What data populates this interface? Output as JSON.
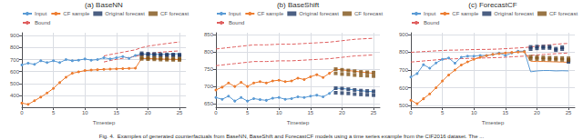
{
  "caption": "Fig. 4.  Examples of generated counterfactuals from BaseNN, BaseShift and ForecastCF models using a time series example from the CIF2016 dataset. The ...",
  "chart_data": [
    {
      "type": "line",
      "title": "(a) BaseNN",
      "x_label": "Timestep",
      "xlim": [
        0,
        26
      ],
      "xticks": [
        0,
        5,
        10,
        15,
        20,
        25
      ],
      "ylim": [
        300,
        925
      ],
      "yticks": [
        400,
        500,
        600,
        700,
        800,
        900
      ],
      "grid": true,
      "legend": "upper left",
      "series": [
        {
          "name": "Input",
          "type": "line",
          "color": "#5b9bd5",
          "marker": "o",
          "line_style": "solid",
          "x": [
            0,
            1,
            2,
            3,
            4,
            5,
            6,
            7,
            8,
            9,
            10,
            11,
            12,
            13,
            14,
            15,
            16,
            17,
            18
          ],
          "values": [
            655,
            670,
            660,
            690,
            675,
            690,
            675,
            700,
            690,
            695,
            705,
            695,
            700,
            715,
            705,
            715,
            725,
            710,
            735
          ]
        },
        {
          "name": "CF sample",
          "type": "line",
          "color": "#ed7d31",
          "marker": "o",
          "line_style": "solid",
          "x": [
            0,
            1,
            2,
            3,
            4,
            5,
            6,
            7,
            8,
            9,
            10,
            11,
            12,
            13,
            14,
            15,
            16,
            17,
            18
          ],
          "values": [
            335,
            325,
            355,
            385,
            420,
            458,
            508,
            552,
            585,
            597,
            608,
            612,
            615,
            618,
            620,
            622,
            624,
            626,
            628
          ]
        },
        {
          "name": "Input",
          "type": "line",
          "color": "#5b9bd5",
          "line_style": "solid",
          "x": [
            18,
            19,
            20,
            21,
            22,
            23,
            24,
            25
          ],
          "values": [
            735,
            748,
            744,
            744,
            744,
            744,
            748,
            748
          ]
        },
        {
          "name": "CF sample",
          "type": "line",
          "color": "#ed7d31",
          "line_style": "solid",
          "x": [
            18,
            19,
            20,
            21,
            22,
            23,
            24,
            25
          ],
          "values": [
            628,
            710,
            708,
            706,
            704,
            703,
            702,
            701
          ]
        },
        {
          "name": "Original forecast",
          "type": "scatter",
          "color": "#1f3864",
          "marker": "s",
          "x": [
            19,
            19,
            20,
            20,
            21,
            21,
            22,
            22,
            23,
            23,
            24,
            24,
            25,
            25
          ],
          "values": [
            753,
            742,
            749,
            738,
            747,
            736,
            745,
            734,
            743,
            733,
            742,
            733,
            741,
            732
          ]
        },
        {
          "name": "CF forecast",
          "type": "scatter",
          "color": "#7f5217",
          "marker": "s",
          "x": [
            19,
            19,
            20,
            20,
            21,
            21,
            22,
            22,
            23,
            23,
            24,
            24,
            25,
            25
          ],
          "values": [
            718,
            706,
            715,
            704,
            713,
            702,
            711,
            700,
            709,
            699,
            708,
            698,
            707,
            697
          ]
        },
        {
          "name": "Bound",
          "type": "line",
          "color": "#e06060",
          "line_style": "dashed",
          "x": [
            13,
            14,
            15,
            16,
            17,
            18,
            19,
            20,
            21,
            22,
            23,
            24,
            25
          ],
          "values": [
            730,
            742,
            752,
            762,
            772,
            782,
            800,
            812,
            820,
            828,
            835,
            842,
            848
          ]
        },
        {
          "name": "Bound",
          "type": "line",
          "color": "#e06060",
          "line_style": "dashed",
          "x": [
            13,
            14,
            15,
            16,
            17,
            18,
            19,
            20,
            21,
            22,
            23,
            24,
            25
          ],
          "values": [
            680,
            692,
            702,
            710,
            718,
            726,
            740,
            750,
            756,
            762,
            766,
            770,
            773
          ]
        }
      ]
    },
    {
      "type": "line",
      "title": "(b) BaseShift",
      "x_label": "Timestep",
      "xlim": [
        0,
        26
      ],
      "xticks": [
        0,
        5,
        10,
        15,
        20,
        25
      ],
      "ylim": [
        640,
        855
      ],
      "yticks": [
        650,
        700,
        750,
        800,
        850
      ],
      "grid": true,
      "legend": "upper left",
      "series": [
        {
          "name": "Input",
          "type": "line",
          "color": "#5b9bd5",
          "marker": "o",
          "line_style": "solid",
          "x": [
            0,
            1,
            2,
            3,
            4,
            5,
            6,
            7,
            8,
            9,
            10,
            11,
            12,
            13,
            14,
            15,
            16,
            17,
            18
          ],
          "values": [
            668,
            663,
            672,
            658,
            668,
            658,
            665,
            662,
            660,
            666,
            668,
            663,
            665,
            670,
            668,
            672,
            675,
            670,
            680
          ]
        },
        {
          "name": "CF sample",
          "type": "line",
          "color": "#ed7d31",
          "marker": "o",
          "line_style": "solid",
          "x": [
            0,
            1,
            2,
            3,
            4,
            5,
            6,
            7,
            8,
            9,
            10,
            11,
            12,
            13,
            14,
            15,
            16,
            17,
            18
          ],
          "values": [
            690,
            698,
            710,
            700,
            712,
            700,
            710,
            714,
            710,
            716,
            718,
            714,
            716,
            724,
            720,
            728,
            734,
            726,
            738
          ]
        },
        {
          "name": "Input",
          "type": "line",
          "color": "#5b9bd5",
          "line_style": "solid",
          "x": [
            18,
            19,
            20,
            21,
            22,
            23,
            24,
            25
          ],
          "values": [
            680,
            695,
            694,
            692,
            690,
            688,
            686,
            685
          ]
        },
        {
          "name": "CF sample",
          "type": "line",
          "color": "#ed7d31",
          "line_style": "solid",
          "x": [
            18,
            19,
            20,
            21,
            22,
            23,
            24,
            25
          ],
          "values": [
            738,
            750,
            748,
            746,
            744,
            742,
            740,
            738
          ]
        },
        {
          "name": "Original forecast",
          "type": "scatter",
          "color": "#1f3864",
          "marker": "s",
          "x": [
            19,
            19,
            20,
            20,
            21,
            21,
            22,
            22,
            23,
            23,
            24,
            24,
            25,
            25
          ],
          "values": [
            695,
            682,
            694,
            681,
            692,
            680,
            690,
            678,
            688,
            677,
            687,
            676,
            686,
            675
          ]
        },
        {
          "name": "CF forecast",
          "type": "scatter",
          "color": "#7f5217",
          "marker": "s",
          "x": [
            19,
            19,
            20,
            20,
            21,
            21,
            22,
            22,
            23,
            23,
            24,
            24,
            25,
            25
          ],
          "values": [
            750,
            738,
            748,
            736,
            746,
            735,
            744,
            733,
            742,
            732,
            741,
            731,
            740,
            730
          ]
        },
        {
          "name": "Bound",
          "type": "line",
          "color": "#e06060",
          "line_style": "dashed",
          "x": [
            0,
            1,
            2,
            3,
            4,
            5,
            6,
            7,
            8,
            9,
            10,
            11,
            12,
            13,
            14,
            15,
            16,
            17,
            18,
            19,
            20,
            21,
            22,
            23,
            24,
            25
          ],
          "values": [
            808,
            810,
            812,
            814,
            816,
            818,
            820,
            820,
            820,
            821,
            822,
            822,
            822,
            823,
            824,
            825,
            826,
            827,
            828,
            830,
            832,
            834,
            836,
            837,
            838,
            839
          ]
        },
        {
          "name": "Bound",
          "type": "line",
          "color": "#e06060",
          "line_style": "dashed",
          "x": [
            0,
            1,
            2,
            3,
            4,
            5,
            6,
            7,
            8,
            9,
            10,
            11,
            12,
            13,
            14,
            15,
            16,
            17,
            18,
            19,
            20,
            21,
            22,
            23,
            24,
            25
          ],
          "values": [
            760,
            762,
            764,
            766,
            768,
            770,
            772,
            772,
            772,
            773,
            774,
            774,
            774,
            775,
            776,
            777,
            778,
            779,
            780,
            782,
            784,
            786,
            788,
            789,
            790,
            791
          ]
        }
      ]
    },
    {
      "type": "line",
      "title": "(c) ForecastCF",
      "x_label": "Timestep",
      "xlim": [
        0,
        26
      ],
      "xticks": [
        0,
        5,
        10,
        15,
        20,
        25
      ],
      "ylim": [
        490,
        910
      ],
      "yticks": [
        500,
        600,
        700,
        800,
        900
      ],
      "grid": true,
      "legend": "upper left",
      "series": [
        {
          "name": "Input",
          "type": "line",
          "color": "#5b9bd5",
          "marker": "o",
          "line_style": "solid",
          "x": [
            0,
            1,
            2,
            3,
            4,
            5,
            6,
            7,
            8,
            9,
            10,
            11,
            12,
            13,
            14,
            15,
            16,
            17,
            18
          ],
          "values": [
            660,
            680,
            730,
            710,
            740,
            760,
            768,
            738,
            772,
            778,
            778,
            782,
            782,
            787,
            796,
            782,
            796,
            806,
            806
          ]
        },
        {
          "name": "CF sample",
          "type": "line",
          "color": "#ed7d31",
          "marker": "o",
          "line_style": "solid",
          "x": [
            0,
            1,
            2,
            3,
            4,
            5,
            6,
            7,
            8,
            9,
            10,
            11,
            12,
            13,
            14,
            15,
            16,
            17,
            18
          ],
          "values": [
            530,
            510,
            538,
            565,
            600,
            638,
            672,
            700,
            728,
            746,
            760,
            772,
            781,
            788,
            792,
            796,
            799,
            801,
            803
          ]
        },
        {
          "name": "Input",
          "type": "line",
          "color": "#5b9bd5",
          "line_style": "solid",
          "x": [
            18,
            19,
            20,
            21,
            22,
            23,
            24,
            25
          ],
          "values": [
            806,
            690,
            695,
            697,
            697,
            695,
            696,
            695
          ]
        },
        {
          "name": "CF sample",
          "type": "line",
          "color": "#ed7d31",
          "line_style": "solid",
          "x": [
            18,
            19,
            20,
            21,
            22,
            23,
            24,
            25
          ],
          "values": [
            803,
            750,
            748,
            748,
            747,
            746,
            745,
            744
          ]
        },
        {
          "name": "Original forecast",
          "type": "scatter",
          "color": "#1f3864",
          "marker": "s",
          "x": [
            19,
            19,
            20,
            20,
            21,
            21,
            22,
            22,
            23,
            23,
            24,
            24,
            25,
            25
          ],
          "values": [
            830,
            818,
            832,
            822,
            832,
            824,
            832,
            824,
            820,
            812,
            828,
            818,
            754,
            746
          ]
        },
        {
          "name": "CF forecast",
          "type": "scatter",
          "color": "#7f5217",
          "marker": "s",
          "x": [
            19,
            19,
            20,
            20,
            21,
            21,
            22,
            22,
            23,
            23,
            24,
            24,
            25,
            25
          ],
          "values": [
            775,
            763,
            773,
            762,
            771,
            760,
            769,
            759,
            768,
            758,
            767,
            757,
            766,
            756
          ]
        },
        {
          "name": "Bound",
          "type": "line",
          "color": "#e06060",
          "line_style": "dashed",
          "x": [
            0,
            1,
            2,
            3,
            4,
            5,
            6,
            7,
            8,
            9,
            10,
            11,
            12,
            13,
            14,
            15,
            16,
            17,
            18,
            19,
            20,
            21,
            22,
            23,
            24,
            25
          ],
          "values": [
            800,
            802,
            804,
            806,
            808,
            810,
            812,
            812,
            813,
            814,
            815,
            816,
            816,
            817,
            818,
            820,
            822,
            824,
            826,
            830,
            834,
            838,
            842,
            845,
            848,
            850
          ]
        },
        {
          "name": "Bound",
          "type": "line",
          "color": "#e06060",
          "line_style": "dashed",
          "x": [
            0,
            1,
            2,
            3,
            4,
            5,
            6,
            7,
            8,
            9,
            10,
            11,
            12,
            13,
            14,
            15,
            16,
            17,
            18,
            19,
            20,
            21,
            22,
            23,
            24,
            25
          ],
          "values": [
            745,
            748,
            751,
            754,
            757,
            760,
            762,
            763,
            764,
            765,
            766,
            767,
            768,
            769,
            770,
            772,
            774,
            776,
            778,
            782,
            785,
            788,
            790,
            792,
            794,
            796
          ]
        }
      ]
    }
  ]
}
